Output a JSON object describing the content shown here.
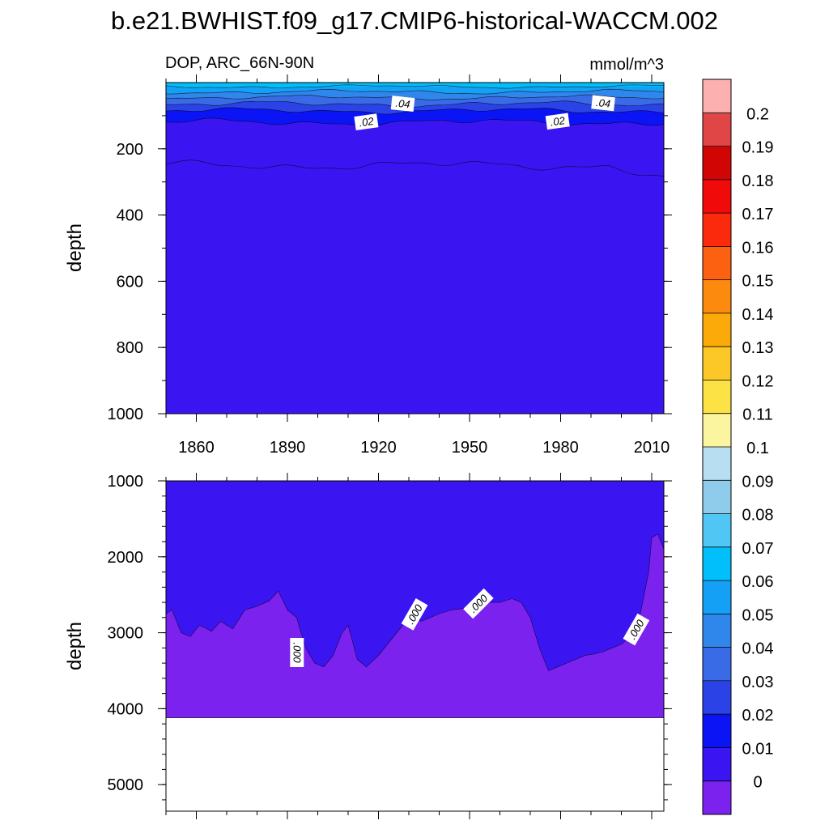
{
  "chart_data": {
    "type": "heatmap",
    "title": "b.e21.BWHIST.f09_g17.CMIP6-historical-WACCM.002",
    "variable": "DOP, ARC_66N-90N",
    "units": "mmol/m^3",
    "colorbar": {
      "labels": [
        "0",
        "0.01",
        "0.02",
        "0.03",
        "0.04",
        "0.05",
        "0.06",
        "0.07",
        "0.08",
        "0.09",
        "0.1",
        "0.11",
        "0.12",
        "0.13",
        "0.14",
        "0.15",
        "0.16",
        "0.17",
        "0.18",
        "0.19",
        "0.2"
      ],
      "colors": [
        "#7B22EE",
        "#3A15F2",
        "#0A14F5",
        "#2B43E6",
        "#3A6BE6",
        "#2F86EB",
        "#14A0F5",
        "#00BFFA",
        "#50C6F5",
        "#8FCBEB",
        "#B8DEF2",
        "#FCF5A0",
        "#FCE245",
        "#FCC828",
        "#FCAA0A",
        "#FC8A0F",
        "#FC6111",
        "#FC2A0D",
        "#F00A0A",
        "#D20505",
        "#E04646",
        "#FCB0B0"
      ]
    },
    "panels": [
      {
        "name": "upper",
        "ylabel": "depth",
        "xlim": [
          1850,
          2014
        ],
        "ylim": [
          0,
          1000
        ],
        "yticks": [
          "200",
          "400",
          "600",
          "800",
          "1000"
        ],
        "xticks": [
          "1860",
          "1890",
          "1920",
          "1950",
          "1980",
          "2010"
        ],
        "contour_labels": [
          ".04",
          ".02",
          ".02",
          ".04"
        ]
      },
      {
        "name": "lower",
        "ylabel": "depth",
        "xlim": [
          1850,
          2014
        ],
        "ylim": [
          1000,
          5350
        ],
        "yticks": [
          "1000",
          "2000",
          "3000",
          "4000",
          "5000"
        ],
        "ocean_floor_depth": 4120,
        "zero_contour_depth": {
          "x": [
            1850,
            1852,
            1855,
            1858,
            1861,
            1865,
            1868,
            1872,
            1876,
            1880,
            1884,
            1887,
            1890,
            1893,
            1896,
            1899,
            1902,
            1905,
            1908,
            1910,
            1913,
            1916,
            1920,
            1924,
            1928,
            1931,
            1934,
            1937,
            1940,
            1944,
            1948,
            1952,
            1956,
            1960,
            1964,
            1967,
            1970,
            1973,
            1976,
            1979,
            1982,
            1985,
            1988,
            1991,
            1994,
            1997,
            2000,
            2003,
            2006,
            2009,
            2010,
            2012,
            2014
          ],
          "depth": [
            2750,
            2700,
            3000,
            3050,
            2900,
            2980,
            2850,
            2950,
            2700,
            2650,
            2580,
            2450,
            2700,
            2800,
            3200,
            3400,
            3450,
            3300,
            3000,
            2900,
            3350,
            3450,
            3300,
            3100,
            2900,
            2750,
            2850,
            2800,
            2750,
            2700,
            2680,
            2650,
            2600,
            2600,
            2550,
            2600,
            2800,
            3200,
            3500,
            3450,
            3400,
            3350,
            3300,
            3280,
            3250,
            3200,
            3150,
            3050,
            2800,
            2200,
            1750,
            1700,
            1900
          ]
        },
        "contour_labels": [
          ".000",
          ".000",
          ".000",
          ".000"
        ]
      }
    ]
  }
}
